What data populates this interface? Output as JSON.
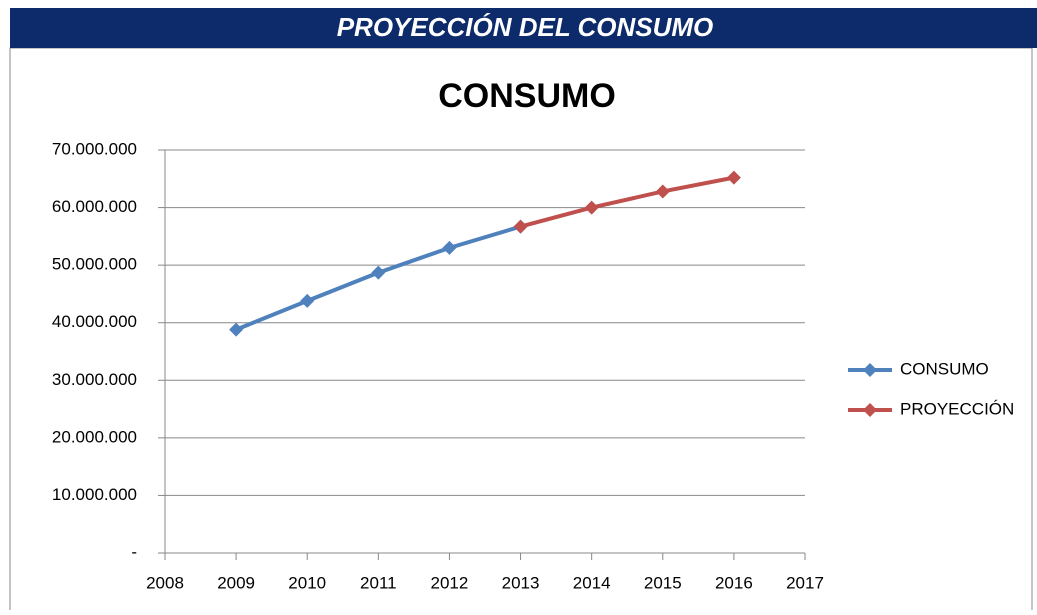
{
  "header": {
    "title": "PROYECCIÓN DEL CONSUMO"
  },
  "chart_data": {
    "type": "line",
    "title": "CONSUMO",
    "x": [
      2009,
      2010,
      2011,
      2012,
      2013,
      2014,
      2015,
      2016
    ],
    "series": [
      {
        "name": "CONSUMO",
        "color": "#4f81bd",
        "values": [
          38800000,
          43800000,
          48700000,
          53000000,
          56700000,
          null,
          null,
          null
        ]
      },
      {
        "name": "PROYECCIÓN",
        "color": "#c0504d",
        "values": [
          null,
          null,
          null,
          null,
          56700000,
          60000000,
          62800000,
          65200000
        ]
      }
    ],
    "xlim": [
      2008,
      2017
    ],
    "xticks": [
      2008,
      2009,
      2010,
      2011,
      2012,
      2013,
      2014,
      2015,
      2016,
      2017
    ],
    "ylim": [
      0,
      70000000
    ],
    "yticks": [
      {
        "value": 0,
        "label": "-"
      },
      {
        "value": 10000000,
        "label": "10.000.000"
      },
      {
        "value": 20000000,
        "label": "20.000.000"
      },
      {
        "value": 30000000,
        "label": "30.000.000"
      },
      {
        "value": 40000000,
        "label": "40.000.000"
      },
      {
        "value": 50000000,
        "label": "50.000.000"
      },
      {
        "value": 60000000,
        "label": "60.000.000"
      },
      {
        "value": 70000000,
        "label": "70.000.000"
      }
    ],
    "grid": true,
    "legend": "right"
  }
}
